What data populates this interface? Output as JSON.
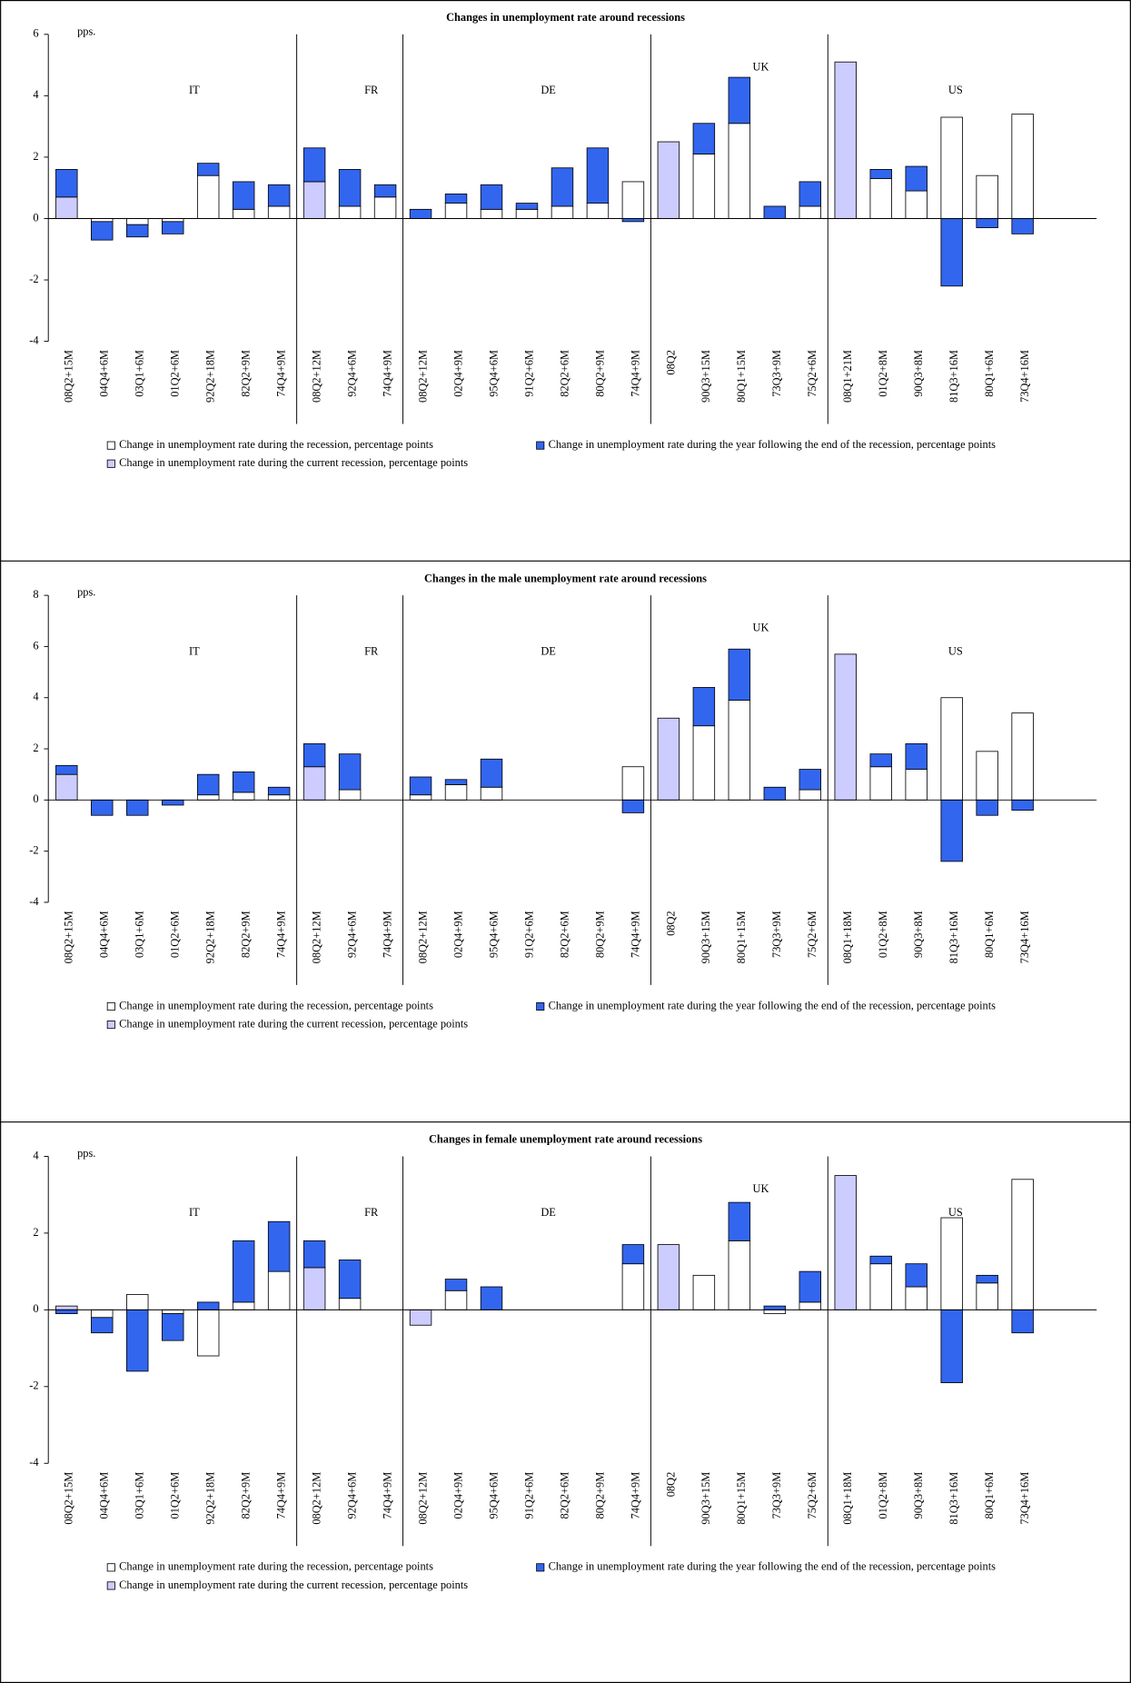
{
  "chart_data": [
    {
      "type": "bar",
      "stacked": true,
      "title": "Changes in unemployment rate around recessions",
      "y_label": "pps.",
      "categories": [
        "08Q2+15M",
        "04Q4+6M",
        "03Q1+6M",
        "01Q2+6M",
        "92Q2+18M",
        "82Q2+9M",
        "74Q4+9M",
        "08Q2+12M",
        "92Q4+6M",
        "74Q4+9M",
        "08Q2+12M",
        "02Q4+9M",
        "95Q4+6M",
        "91Q2+6M",
        "82Q2+6M",
        "80Q2+9M",
        "74Q4+9M",
        "08Q2",
        "90Q3+15M",
        "80Q1+15M",
        "73Q3+9M",
        "75Q2+6M",
        "08Q1+21M",
        "01Q2+8M",
        "90Q3+8M",
        "81Q3+16M",
        "80Q1+6M",
        "73Q4+16M"
      ],
      "group_labels": [
        "IT",
        "FR",
        "DE",
        "UK",
        "US"
      ],
      "series": [
        {
          "name": "Change in unemployment rate during the recession, percentage points",
          "color": "#ffffff",
          "values": [
            null,
            -0.1,
            -0.2,
            -0.1,
            1.4,
            0.3,
            0.4,
            null,
            0.4,
            0.7,
            null,
            0.5,
            0.3,
            0.3,
            0.4,
            0.5,
            1.2,
            null,
            2.1,
            3.1,
            null,
            0.4,
            null,
            1.3,
            0.9,
            3.3,
            1.4,
            3.4
          ]
        },
        {
          "name": "Change in unemployment rate during the year following the end of the recession, percentage points",
          "color": "#3366ee",
          "values": [
            0.9,
            -0.6,
            -0.4,
            -0.4,
            0.4,
            0.9,
            0.7,
            1.1,
            1.2,
            0.4,
            0.3,
            0.3,
            0.8,
            0.2,
            1.25,
            1.8,
            -0.1,
            null,
            1.0,
            1.5,
            0.4,
            0.8,
            null,
            0.3,
            0.8,
            -2.2,
            -0.3,
            -0.5
          ]
        },
        {
          "name": "Change in unemployment rate during the current recession, percentage points",
          "color": "#ccccff",
          "values": [
            0.7,
            null,
            null,
            null,
            null,
            null,
            null,
            1.2,
            null,
            null,
            null,
            null,
            null,
            null,
            null,
            null,
            null,
            2.5,
            null,
            null,
            null,
            null,
            5.1,
            null,
            null,
            null,
            null,
            null
          ]
        }
      ],
      "ylim": [
        -4,
        6
      ],
      "yticks": [
        -4,
        -2,
        0,
        2,
        4,
        6
      ]
    },
    {
      "type": "bar",
      "stacked": true,
      "title": "Changes in the male unemployment rate around recessions",
      "y_label": "pps.",
      "categories": [
        "08Q2+15M",
        "04Q4+6M",
        "03Q1+6M",
        "01Q2+6M",
        "92Q2+18M",
        "82Q2+9M",
        "74Q4+9M",
        "08Q2+12M",
        "92Q4+6M",
        "74Q4+9M",
        "08Q2+12M",
        "02Q4+9M",
        "95Q4+6M",
        "91Q2+6M",
        "82Q2+6M",
        "80Q2+9M",
        "74Q4+9M",
        "08Q2",
        "90Q3+15M",
        "80Q1+15M",
        "73Q3+9M",
        "75Q2+6M",
        "08Q1+18M",
        "01Q2+8M",
        "90Q3+8M",
        "81Q3+16M",
        "80Q1+6M",
        "73Q4+16M"
      ],
      "group_labels": [
        "IT",
        "FR",
        "DE",
        "UK",
        "US"
      ],
      "series": [
        {
          "name": "Change in unemployment rate during the recession, percentage points",
          "color": "#ffffff",
          "values": [
            null,
            null,
            null,
            null,
            0.2,
            0.3,
            0.2,
            null,
            0.4,
            null,
            0.2,
            0.6,
            0.5,
            null,
            null,
            null,
            1.3,
            null,
            2.9,
            3.9,
            null,
            0.4,
            null,
            1.3,
            1.2,
            4.0,
            1.9,
            3.4
          ]
        },
        {
          "name": "Change in unemployment rate during the year following the end of the recession, percentage points",
          "color": "#3366ee",
          "values": [
            0.35,
            -0.6,
            -0.6,
            -0.2,
            0.8,
            0.8,
            0.3,
            0.9,
            1.4,
            null,
            0.7,
            0.2,
            1.1,
            null,
            null,
            null,
            -0.5,
            null,
            1.5,
            2.0,
            0.5,
            0.8,
            null,
            0.5,
            1.0,
            -2.4,
            -0.6,
            -0.4
          ]
        },
        {
          "name": "Change in unemployment rate during the current recession, percentage points",
          "color": "#ccccff",
          "values": [
            1.0,
            null,
            null,
            null,
            null,
            null,
            null,
            1.3,
            null,
            null,
            null,
            null,
            null,
            null,
            null,
            null,
            null,
            3.2,
            null,
            null,
            null,
            null,
            5.7,
            null,
            null,
            null,
            null,
            null
          ]
        }
      ],
      "ylim": [
        -4,
        8
      ],
      "yticks": [
        -4,
        -2,
        0,
        2,
        4,
        6,
        8
      ]
    },
    {
      "type": "bar",
      "stacked": true,
      "title": "Changes in female unemployment rate around recessions",
      "y_label": "pps.",
      "categories": [
        "08Q2+15M",
        "04Q4+6M",
        "03Q1+6M",
        "01Q2+6M",
        "92Q2+18M",
        "82Q2+9M",
        "74Q4+9M",
        "08Q2+12M",
        "92Q4+6M",
        "74Q4+9M",
        "08Q2+12M",
        "02Q4+9M",
        "95Q4+6M",
        "91Q2+6M",
        "82Q2+6M",
        "80Q2+9M",
        "74Q4+9M",
        "08Q2",
        "90Q3+15M",
        "80Q1+15M",
        "73Q3+9M",
        "75Q2+6M",
        "08Q1+18M",
        "01Q2+8M",
        "90Q3+8M",
        "81Q3+16M",
        "80Q1+6M",
        "73Q4+16M"
      ],
      "group_labels": [
        "IT",
        "FR",
        "DE",
        "UK",
        "US"
      ],
      "series": [
        {
          "name": "Change in unemployment rate during the recession, percentage points",
          "color": "#ffffff",
          "values": [
            null,
            -0.2,
            0.4,
            -0.1,
            -1.2,
            0.2,
            1.0,
            null,
            0.3,
            null,
            null,
            0.5,
            null,
            null,
            null,
            null,
            1.2,
            null,
            0.9,
            1.8,
            -0.1,
            0.2,
            null,
            1.2,
            0.6,
            2.4,
            0.7,
            3.4
          ]
        },
        {
          "name": "Change in unemployment rate during the year following the end of the recession, percentage points",
          "color": "#3366ee",
          "values": [
            -0.1,
            -0.4,
            -1.6,
            -0.7,
            0.2,
            1.6,
            1.3,
            0.7,
            1.0,
            null,
            null,
            0.3,
            0.6,
            null,
            null,
            null,
            0.5,
            null,
            null,
            1.0,
            0.1,
            0.8,
            null,
            0.2,
            0.6,
            -1.9,
            0.2,
            -0.6
          ]
        },
        {
          "name": "Change in unemployment rate during the current recession, percentage points",
          "color": "#ccccff",
          "values": [
            0.1,
            null,
            null,
            null,
            null,
            null,
            null,
            1.1,
            null,
            null,
            -0.4,
            null,
            null,
            null,
            null,
            null,
            null,
            1.7,
            null,
            null,
            null,
            null,
            3.5,
            null,
            null,
            null,
            null,
            null
          ]
        }
      ],
      "ylim": [
        -4,
        4
      ],
      "yticks": [
        -4,
        -2,
        0,
        2,
        4
      ]
    }
  ]
}
